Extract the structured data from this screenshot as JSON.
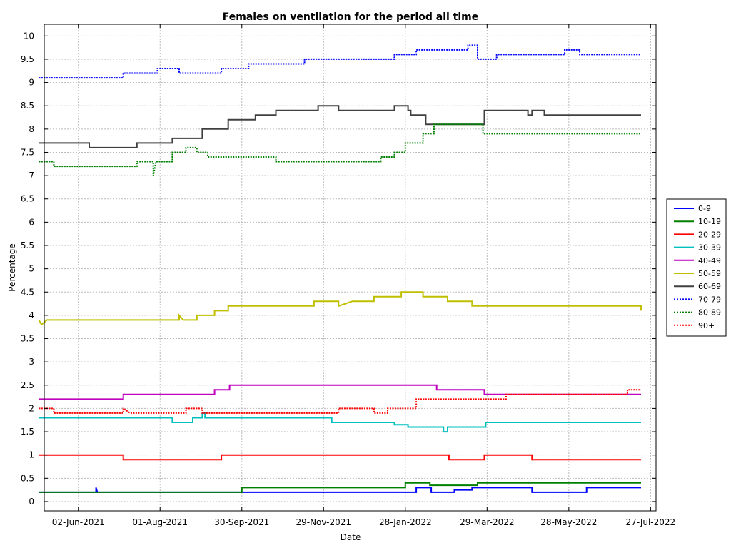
{
  "chart_data": {
    "type": "line",
    "title": "Females on ventilation for the period all time",
    "xlabel": "Date",
    "ylabel": "Percentage",
    "grid": true,
    "legend_position": "right",
    "xlim": [
      "2021-05-08",
      "2022-07-31"
    ],
    "ylim": [
      -0.2,
      10.25
    ],
    "x_ticks": [
      "2021-06-02",
      "2021-08-01",
      "2021-09-30",
      "2021-11-29",
      "2022-01-28",
      "2022-03-29",
      "2022-05-28",
      "2022-07-27"
    ],
    "x_tick_labels": [
      "02-Jun-2021",
      "01-Aug-2021",
      "30-Sep-2021",
      "29-Nov-2021",
      "28-Jan-2022",
      "29-Mar-2022",
      "28-May-2022",
      "27-Jul-2022"
    ],
    "y_ticks": [
      0,
      0.5,
      1,
      1.5,
      2,
      2.5,
      3,
      3.5,
      4,
      4.5,
      5,
      5.5,
      6,
      6.5,
      7,
      7.5,
      8,
      8.5,
      9,
      9.5,
      10
    ],
    "y_tick_labels": [
      "0",
      "0.5",
      "1",
      "1.5",
      "2",
      "2.5",
      "3",
      "3.5",
      "4",
      "4.5",
      "5",
      "5.5",
      "6",
      "6.5",
      "7",
      "7.5",
      "8",
      "8.5",
      "9",
      "9.5",
      "10"
    ],
    "series": [
      {
        "name": "0-9",
        "color": "#0000ff",
        "style": "solid",
        "points": [
          [
            "2021-05-04",
            0.2
          ],
          [
            "2021-06-15",
            0.2
          ],
          [
            "2021-06-15",
            0.3
          ],
          [
            "2021-06-16",
            0.2
          ],
          [
            "2022-02-05",
            0.2
          ],
          [
            "2022-02-05",
            0.3
          ],
          [
            "2022-02-16",
            0.3
          ],
          [
            "2022-02-16",
            0.2
          ],
          [
            "2022-03-05",
            0.2
          ],
          [
            "2022-03-05",
            0.25
          ],
          [
            "2022-03-18",
            0.25
          ],
          [
            "2022-03-18",
            0.3
          ],
          [
            "2022-05-01",
            0.3
          ],
          [
            "2022-05-01",
            0.2
          ],
          [
            "2022-06-10",
            0.2
          ],
          [
            "2022-06-10",
            0.3
          ],
          [
            "2022-07-20",
            0.3
          ]
        ]
      },
      {
        "name": "10-19",
        "color": "#008000",
        "style": "solid",
        "points": [
          [
            "2021-05-04",
            0.2
          ],
          [
            "2021-09-30",
            0.2
          ],
          [
            "2021-09-30",
            0.3
          ],
          [
            "2022-01-28",
            0.3
          ],
          [
            "2022-01-28",
            0.4
          ],
          [
            "2022-02-15",
            0.4
          ],
          [
            "2022-02-15",
            0.35
          ],
          [
            "2022-03-22",
            0.35
          ],
          [
            "2022-03-22",
            0.4
          ],
          [
            "2022-07-20",
            0.4
          ]
        ]
      },
      {
        "name": "20-29",
        "color": "#ff0000",
        "style": "solid",
        "points": [
          [
            "2021-05-04",
            1.0
          ],
          [
            "2021-07-05",
            1.0
          ],
          [
            "2021-07-05",
            0.9
          ],
          [
            "2021-09-15",
            0.9
          ],
          [
            "2021-09-15",
            1.0
          ],
          [
            "2022-03-01",
            1.0
          ],
          [
            "2022-03-01",
            0.9
          ],
          [
            "2022-03-27",
            0.9
          ],
          [
            "2022-03-27",
            1.0
          ],
          [
            "2022-05-01",
            1.0
          ],
          [
            "2022-05-01",
            0.9
          ],
          [
            "2022-07-20",
            0.9
          ]
        ]
      },
      {
        "name": "30-39",
        "color": "#00bfbf",
        "style": "solid",
        "points": [
          [
            "2021-05-04",
            1.8
          ],
          [
            "2021-08-10",
            1.8
          ],
          [
            "2021-08-10",
            1.7
          ],
          [
            "2021-08-25",
            1.7
          ],
          [
            "2021-08-25",
            1.8
          ],
          [
            "2021-09-01",
            1.8
          ],
          [
            "2021-09-01",
            1.9
          ],
          [
            "2021-09-03",
            1.9
          ],
          [
            "2021-09-03",
            1.8
          ],
          [
            "2021-12-05",
            1.8
          ],
          [
            "2021-12-05",
            1.7
          ],
          [
            "2022-01-20",
            1.7
          ],
          [
            "2022-01-20",
            1.65
          ],
          [
            "2022-01-30",
            1.65
          ],
          [
            "2022-01-30",
            1.6
          ],
          [
            "2022-02-25",
            1.6
          ],
          [
            "2022-02-25",
            1.5
          ],
          [
            "2022-02-28",
            1.5
          ],
          [
            "2022-02-28",
            1.6
          ],
          [
            "2022-03-28",
            1.6
          ],
          [
            "2022-03-28",
            1.7
          ],
          [
            "2022-07-20",
            1.7
          ]
        ]
      },
      {
        "name": "40-49",
        "color": "#bf00bf",
        "style": "solid",
        "points": [
          [
            "2021-05-04",
            2.2
          ],
          [
            "2021-07-05",
            2.2
          ],
          [
            "2021-07-05",
            2.3
          ],
          [
            "2021-09-10",
            2.3
          ],
          [
            "2021-09-10",
            2.4
          ],
          [
            "2021-09-21",
            2.4
          ],
          [
            "2021-09-21",
            2.5
          ],
          [
            "2021-10-05",
            2.5
          ],
          [
            "2022-02-20",
            2.5
          ],
          [
            "2022-02-20",
            2.4
          ],
          [
            "2022-03-27",
            2.4
          ],
          [
            "2022-03-27",
            2.3
          ],
          [
            "2022-07-20",
            2.3
          ]
        ]
      },
      {
        "name": "50-59",
        "color": "#bfbf00",
        "style": "solid",
        "points": [
          [
            "2021-05-04",
            3.9
          ],
          [
            "2021-05-06",
            3.8
          ],
          [
            "2021-05-10",
            3.9
          ],
          [
            "2021-08-15",
            3.9
          ],
          [
            "2021-08-15",
            4.0
          ],
          [
            "2021-08-18",
            3.9
          ],
          [
            "2021-08-28",
            3.9
          ],
          [
            "2021-08-28",
            4.0
          ],
          [
            "2021-09-10",
            4.0
          ],
          [
            "2021-09-10",
            4.1
          ],
          [
            "2021-09-20",
            4.1
          ],
          [
            "2021-09-20",
            4.2
          ],
          [
            "2021-11-22",
            4.2
          ],
          [
            "2021-11-22",
            4.3
          ],
          [
            "2021-12-10",
            4.3
          ],
          [
            "2021-12-10",
            4.2
          ],
          [
            "2021-12-20",
            4.3
          ],
          [
            "2022-01-05",
            4.3
          ],
          [
            "2022-01-05",
            4.4
          ],
          [
            "2022-01-25",
            4.4
          ],
          [
            "2022-01-25",
            4.5
          ],
          [
            "2022-02-10",
            4.5
          ],
          [
            "2022-02-10",
            4.4
          ],
          [
            "2022-02-28",
            4.4
          ],
          [
            "2022-02-28",
            4.3
          ],
          [
            "2022-03-18",
            4.3
          ],
          [
            "2022-03-18",
            4.2
          ],
          [
            "2022-07-20",
            4.2
          ],
          [
            "2022-07-20",
            4.1
          ]
        ]
      },
      {
        "name": "60-69",
        "color": "#404040",
        "style": "solid",
        "points": [
          [
            "2021-05-04",
            7.7
          ],
          [
            "2021-06-10",
            7.7
          ],
          [
            "2021-06-10",
            7.6
          ],
          [
            "2021-07-15",
            7.6
          ],
          [
            "2021-07-15",
            7.7
          ],
          [
            "2021-08-10",
            7.7
          ],
          [
            "2021-08-10",
            7.8
          ],
          [
            "2021-09-01",
            7.8
          ],
          [
            "2021-09-01",
            8.0
          ],
          [
            "2021-09-20",
            8.0
          ],
          [
            "2021-09-20",
            8.2
          ],
          [
            "2021-10-10",
            8.2
          ],
          [
            "2021-10-10",
            8.3
          ],
          [
            "2021-10-25",
            8.3
          ],
          [
            "2021-10-25",
            8.4
          ],
          [
            "2021-11-25",
            8.4
          ],
          [
            "2021-11-25",
            8.5
          ],
          [
            "2021-12-10",
            8.5
          ],
          [
            "2021-12-10",
            8.4
          ],
          [
            "2022-01-20",
            8.4
          ],
          [
            "2022-01-20",
            8.5
          ],
          [
            "2022-01-30",
            8.5
          ],
          [
            "2022-01-30",
            8.4
          ],
          [
            "2022-02-01",
            8.4
          ],
          [
            "2022-02-01",
            8.3
          ],
          [
            "2022-02-12",
            8.3
          ],
          [
            "2022-02-12",
            8.1
          ],
          [
            "2022-03-27",
            8.1
          ],
          [
            "2022-03-27",
            8.4
          ],
          [
            "2022-04-28",
            8.4
          ],
          [
            "2022-04-28",
            8.3
          ],
          [
            "2022-05-01",
            8.3
          ],
          [
            "2022-05-01",
            8.4
          ],
          [
            "2022-05-10",
            8.4
          ],
          [
            "2022-05-10",
            8.3
          ],
          [
            "2022-07-20",
            8.3
          ]
        ]
      },
      {
        "name": "70-79",
        "color": "#0000ff",
        "style": "dotted",
        "points": [
          [
            "2021-05-04",
            9.1
          ],
          [
            "2021-07-05",
            9.1
          ],
          [
            "2021-07-05",
            9.2
          ],
          [
            "2021-07-30",
            9.2
          ],
          [
            "2021-07-30",
            9.3
          ],
          [
            "2021-08-15",
            9.3
          ],
          [
            "2021-08-15",
            9.2
          ],
          [
            "2021-09-15",
            9.2
          ],
          [
            "2021-09-15",
            9.3
          ],
          [
            "2021-10-05",
            9.3
          ],
          [
            "2021-10-05",
            9.4
          ],
          [
            "2021-11-15",
            9.4
          ],
          [
            "2021-11-15",
            9.5
          ],
          [
            "2022-01-20",
            9.5
          ],
          [
            "2022-01-20",
            9.6
          ],
          [
            "2022-02-05",
            9.6
          ],
          [
            "2022-02-05",
            9.7
          ],
          [
            "2022-03-15",
            9.7
          ],
          [
            "2022-03-15",
            9.8
          ],
          [
            "2022-03-22",
            9.8
          ],
          [
            "2022-03-22",
            9.5
          ],
          [
            "2022-04-05",
            9.5
          ],
          [
            "2022-04-05",
            9.6
          ],
          [
            "2022-05-25",
            9.6
          ],
          [
            "2022-05-25",
            9.7
          ],
          [
            "2022-06-05",
            9.7
          ],
          [
            "2022-06-05",
            9.6
          ],
          [
            "2022-07-20",
            9.6
          ]
        ]
      },
      {
        "name": "80-89",
        "color": "#008000",
        "style": "dotted",
        "points": [
          [
            "2021-05-04",
            7.3
          ],
          [
            "2021-05-15",
            7.3
          ],
          [
            "2021-05-15",
            7.2
          ],
          [
            "2021-07-15",
            7.2
          ],
          [
            "2021-07-15",
            7.3
          ],
          [
            "2021-07-27",
            7.3
          ],
          [
            "2021-07-27",
            7.0
          ],
          [
            "2021-07-29",
            7.3
          ],
          [
            "2021-08-10",
            7.3
          ],
          [
            "2021-08-10",
            7.5
          ],
          [
            "2021-08-20",
            7.5
          ],
          [
            "2021-08-20",
            7.6
          ],
          [
            "2021-08-28",
            7.6
          ],
          [
            "2021-08-28",
            7.5
          ],
          [
            "2021-09-05",
            7.5
          ],
          [
            "2021-09-05",
            7.4
          ],
          [
            "2021-10-25",
            7.4
          ],
          [
            "2021-10-25",
            7.3
          ],
          [
            "2022-01-10",
            7.3
          ],
          [
            "2022-01-10",
            7.4
          ],
          [
            "2022-01-20",
            7.4
          ],
          [
            "2022-01-20",
            7.5
          ],
          [
            "2022-01-28",
            7.5
          ],
          [
            "2022-01-28",
            7.7
          ],
          [
            "2022-02-10",
            7.7
          ],
          [
            "2022-02-10",
            7.9
          ],
          [
            "2022-02-18",
            7.9
          ],
          [
            "2022-02-18",
            8.1
          ],
          [
            "2022-03-26",
            8.1
          ],
          [
            "2022-03-26",
            7.9
          ],
          [
            "2022-07-20",
            7.9
          ]
        ]
      },
      {
        "name": "90+",
        "color": "#ff0000",
        "style": "dotted",
        "points": [
          [
            "2021-05-04",
            2.0
          ],
          [
            "2021-05-15",
            2.0
          ],
          [
            "2021-05-15",
            1.9
          ],
          [
            "2021-07-05",
            1.9
          ],
          [
            "2021-07-05",
            2.0
          ],
          [
            "2021-07-10",
            1.9
          ],
          [
            "2021-08-20",
            1.9
          ],
          [
            "2021-08-20",
            2.0
          ],
          [
            "2021-09-01",
            2.0
          ],
          [
            "2021-09-01",
            1.9
          ],
          [
            "2021-12-10",
            1.9
          ],
          [
            "2021-12-10",
            2.0
          ],
          [
            "2022-01-05",
            2.0
          ],
          [
            "2022-01-05",
            1.9
          ],
          [
            "2022-01-15",
            1.9
          ],
          [
            "2022-01-15",
            2.0
          ],
          [
            "2022-02-05",
            2.0
          ],
          [
            "2022-02-05",
            2.2
          ],
          [
            "2022-04-12",
            2.2
          ],
          [
            "2022-04-12",
            2.3
          ],
          [
            "2022-07-10",
            2.3
          ],
          [
            "2022-07-10",
            2.4
          ],
          [
            "2022-07-20",
            2.4
          ]
        ]
      }
    ]
  }
}
